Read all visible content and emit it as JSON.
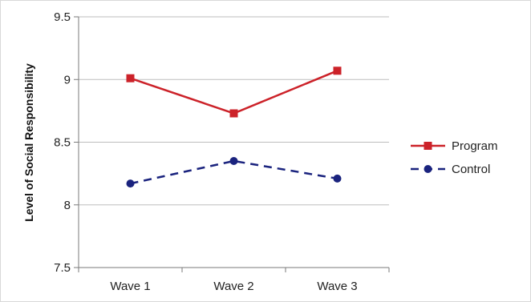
{
  "chart_data": {
    "type": "line",
    "title": "",
    "xlabel": "",
    "ylabel": "Level of Social Responsibility",
    "categories": [
      "Wave 1",
      "Wave 2",
      "Wave 3"
    ],
    "ylim": [
      7.5,
      9.5
    ],
    "yticks": [
      "7.5",
      "8",
      "8.5",
      "9",
      "9.5"
    ],
    "grid": "horizontal",
    "legend_position": "right",
    "series": [
      {
        "name": "Program",
        "values": [
          9.01,
          8.73,
          9.07
        ],
        "color": "#cc2229",
        "marker": "square",
        "line": "solid"
      },
      {
        "name": "Control",
        "values": [
          8.17,
          8.35,
          8.21
        ],
        "color": "#1a237e",
        "marker": "circle",
        "line": "dashed"
      }
    ]
  }
}
